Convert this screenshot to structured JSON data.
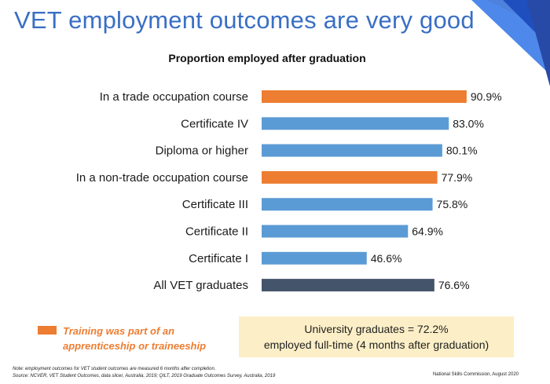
{
  "slide": {
    "title": "VET employment outcomes are very good",
    "credit": "National Skills Commission, August 2020"
  },
  "colors": {
    "title": "#3a6fc4",
    "highlight": "#ed7d31",
    "standard": "#5b9bd5",
    "total": "#44546a",
    "callout_bg": "#fcefc7"
  },
  "legend": {
    "label_line1": "Training was part of an",
    "label_line2": "apprenticeship or traineeship",
    "color": "#ed7d31"
  },
  "callout": {
    "line1": "University graduates = 72.2%",
    "line2": "employed full-time (4 months after graduation)"
  },
  "footnote": {
    "line1": "Note: employment outcomes for VET student outcomes are measured 6 months after completion.",
    "line2": "Source: NCVER, VET Student Outcomes, data slicer, Australia, 2019; QILT, 2019 Graduate Outcomes Survey, Australia, 2019"
  },
  "chart_data": {
    "type": "bar",
    "orientation": "horizontal",
    "title": "Proportion employed after graduation",
    "categories": [
      "In a trade occupation course",
      "Certificate IV",
      "Diploma or higher",
      "In a non-trade occupation course",
      "Certificate III",
      "Certificate II",
      "Certificate I",
      "All VET graduates"
    ],
    "values": [
      90.9,
      83.0,
      80.1,
      77.9,
      75.8,
      64.9,
      46.6,
      76.6
    ],
    "value_labels": [
      "90.9%",
      "83.0%",
      "80.1%",
      "77.9%",
      "75.8%",
      "64.9%",
      "46.6%",
      "76.6%"
    ],
    "bar_colors": [
      "#ed7d31",
      "#5b9bd5",
      "#5b9bd5",
      "#ed7d31",
      "#5b9bd5",
      "#5b9bd5",
      "#5b9bd5",
      "#44546a"
    ],
    "xlim": [
      0,
      100
    ],
    "grid": false,
    "axis_visible": false
  }
}
